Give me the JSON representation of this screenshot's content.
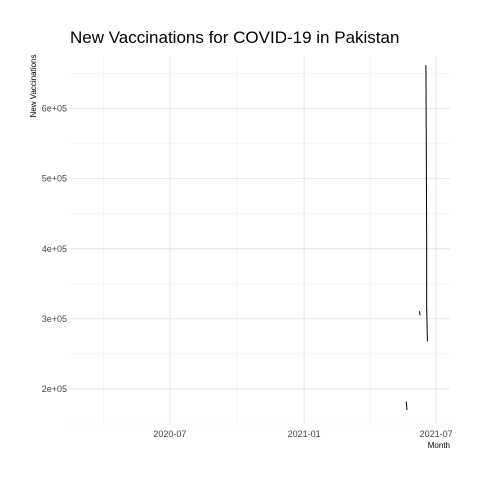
{
  "chart_data": {
    "type": "line",
    "title": "New Vaccinations for COVID-19 in Pakistan",
    "xlabel": "Month",
    "ylabel": "New Vaccinations",
    "x_ticks": [
      {
        "value": "2020-07-01",
        "label": "2020-07"
      },
      {
        "value": "2021-01-01",
        "label": "2021-01"
      },
      {
        "value": "2021-07-01",
        "label": "2021-07"
      }
    ],
    "y_ticks": [
      {
        "value": 200000,
        "label": "2e+05"
      },
      {
        "value": 300000,
        "label": "3e+05"
      },
      {
        "value": 400000,
        "label": "4e+05"
      },
      {
        "value": 500000,
        "label": "5e+05"
      },
      {
        "value": 600000,
        "label": "6e+05"
      }
    ],
    "xlim": [
      "2020-02-15",
      "2021-07-20"
    ],
    "ylim": [
      150000,
      675000
    ],
    "grid": true,
    "series": [
      {
        "values": [
          {
            "x": "2021-05-21",
            "y": 182000
          },
          {
            "x": "2021-05-22",
            "y": 170000
          },
          {
            "x": null,
            "y": null
          },
          {
            "x": "2021-06-08",
            "y": 311000
          },
          {
            "x": "2021-06-09",
            "y": 305000
          },
          {
            "x": null,
            "y": null
          },
          {
            "x": "2021-06-17",
            "y": 662000
          },
          {
            "x": "2021-06-18",
            "y": 418000
          },
          {
            "x": "2021-06-18",
            "y": 318000
          },
          {
            "x": "2021-06-19",
            "y": 268000
          }
        ]
      }
    ]
  }
}
